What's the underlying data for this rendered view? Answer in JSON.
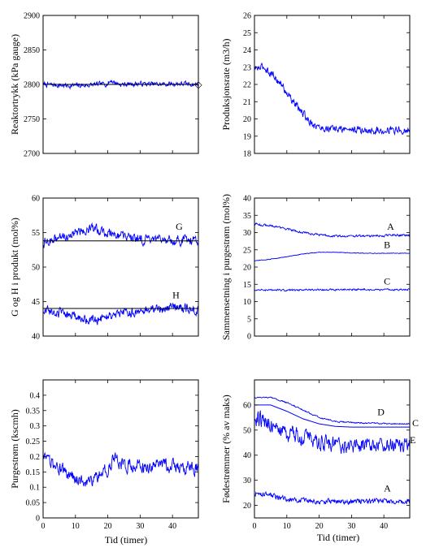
{
  "chart_data": [
    {
      "type": "line",
      "xlabel": "",
      "ylabel": "Reaktortrykk (kPa gauge)",
      "xlim": [
        0,
        48
      ],
      "ylim": [
        2700,
        2900
      ],
      "xticks": [
        0,
        10,
        20,
        30,
        40
      ],
      "xtick_labels_visible": false,
      "yticks": [
        2700,
        2750,
        2800,
        2850,
        2900
      ],
      "grid": false,
      "series": [
        {
          "style": "noisy",
          "color": "#0000ff",
          "x": [
            0,
            8,
            14,
            20,
            21,
            22,
            24,
            30,
            36,
            42,
            48
          ],
          "y": [
            2800,
            2798,
            2799,
            2801,
            2806,
            2803,
            2800,
            2801,
            2800,
            2801,
            2800
          ],
          "noise": 4
        },
        {
          "style": "line",
          "color": "#000000",
          "x": [
            0,
            48
          ],
          "y": [
            2800,
            2800
          ]
        }
      ],
      "annotations": [
        {
          "text": "◇",
          "x": 48,
          "y": 2800
        }
      ]
    },
    {
      "type": "line",
      "xlabel": "",
      "ylabel": "Produksjonsrate (m3/h)",
      "xlim": [
        0,
        48
      ],
      "ylim": [
        18,
        26
      ],
      "xticks": [
        0,
        10,
        20,
        30,
        40
      ],
      "xtick_labels_visible": false,
      "yticks": [
        18,
        19,
        20,
        21,
        22,
        23,
        24,
        25,
        26
      ],
      "grid": false,
      "series": [
        {
          "style": "noisy",
          "color": "#0000ff",
          "x": [
            0,
            3,
            6,
            9,
            12,
            15,
            18,
            20,
            24,
            30,
            36,
            42,
            48
          ],
          "y": [
            22.9,
            23.0,
            22.5,
            21.8,
            21.0,
            20.3,
            19.7,
            19.5,
            19.4,
            19.4,
            19.3,
            19.4,
            19.3
          ],
          "noise": 0.25
        }
      ],
      "annotations": []
    },
    {
      "type": "line",
      "xlabel": "",
      "ylabel": "G og H i produkt (mol%)",
      "xlim": [
        0,
        48
      ],
      "ylim": [
        40,
        60
      ],
      "xticks": [
        0,
        10,
        20,
        30,
        40
      ],
      "xtick_labels_visible": false,
      "yticks": [
        40,
        45,
        50,
        55,
        60
      ],
      "grid": false,
      "series": [
        {
          "name": "G",
          "style": "noisy",
          "color": "#0000ff",
          "x": [
            0,
            5,
            10,
            15,
            20,
            25,
            30,
            35,
            40,
            48
          ],
          "y": [
            53.5,
            54.2,
            55.0,
            55.6,
            55.0,
            54.4,
            54.0,
            53.8,
            54.0,
            53.8
          ],
          "noise": 0.8
        },
        {
          "style": "line",
          "color": "#000000",
          "x": [
            0,
            48
          ],
          "y": [
            53.8,
            53.8
          ]
        },
        {
          "name": "H",
          "style": "noisy",
          "color": "#0000ff",
          "x": [
            0,
            5,
            10,
            15,
            20,
            25,
            30,
            35,
            40,
            48
          ],
          "y": [
            43.8,
            43.5,
            42.8,
            42.3,
            42.8,
            43.2,
            43.6,
            43.9,
            44.2,
            43.8
          ],
          "noise": 0.8
        },
        {
          "style": "line",
          "color": "#000000",
          "x": [
            0,
            48
          ],
          "y": [
            44.0,
            44.0
          ]
        }
      ],
      "annotations": [
        {
          "text": "G",
          "x": 41,
          "y": 55.4
        },
        {
          "text": "H",
          "x": 40,
          "y": 45.5
        }
      ]
    },
    {
      "type": "line",
      "xlabel": "",
      "ylabel": "Sammensetning i purgestrøm (mol%)",
      "xlim": [
        0,
        48
      ],
      "ylim": [
        0,
        40
      ],
      "xticks": [
        0,
        10,
        20,
        30,
        40
      ],
      "xtick_labels_visible": false,
      "yticks": [
        0,
        5,
        10,
        15,
        20,
        25,
        30,
        35,
        40
      ],
      "grid": false,
      "series": [
        {
          "name": "A",
          "style": "noisy",
          "color": "#0000ff",
          "x": [
            0,
            5,
            10,
            15,
            20,
            25,
            30,
            36,
            42,
            48
          ],
          "y": [
            32.5,
            32.0,
            31.0,
            30.0,
            29.3,
            29.0,
            29.0,
            29.0,
            29.2,
            29.2
          ],
          "noise": 0.35
        },
        {
          "name": "B",
          "style": "noisy",
          "color": "#0000ff",
          "x": [
            0,
            5,
            10,
            15,
            20,
            25,
            30,
            36,
            42,
            48
          ],
          "y": [
            21.8,
            22.3,
            23.0,
            23.8,
            24.3,
            24.3,
            24.1,
            24.0,
            24.0,
            24.0
          ],
          "noise": 0.1
        },
        {
          "name": "C",
          "style": "noisy",
          "color": "#0000ff",
          "x": [
            0,
            10,
            20,
            30,
            40,
            48
          ],
          "y": [
            13.5,
            13.3,
            13.4,
            13.5,
            13.4,
            13.5
          ],
          "noise": 0.3
        }
      ],
      "annotations": [
        {
          "text": "A",
          "x": 41,
          "y": 30.8
        },
        {
          "text": "B",
          "x": 40,
          "y": 25.5
        },
        {
          "text": "C",
          "x": 40,
          "y": 15.0
        }
      ]
    },
    {
      "type": "line",
      "xlabel": "",
      "ylabel": "Purgestrøm (kscmh)",
      "xlim": [
        0,
        48
      ],
      "ylim": [
        0,
        0.45
      ],
      "xticks": [
        0,
        10,
        20,
        30,
        40
      ],
      "xtick_labels_visible": true,
      "yticks": [
        0,
        0.05,
        0.1,
        0.15,
        0.2,
        0.25,
        0.3,
        0.35,
        0.4
      ],
      "grid": false,
      "series": [
        {
          "style": "noisy",
          "color": "#0000ff",
          "x": [
            0,
            5,
            10,
            15,
            20,
            22,
            25,
            30,
            35,
            40,
            48
          ],
          "y": [
            0.19,
            0.16,
            0.13,
            0.12,
            0.16,
            0.19,
            0.17,
            0.17,
            0.17,
            0.17,
            0.16
          ],
          "noise": 0.025
        }
      ],
      "annotations": []
    },
    {
      "type": "line",
      "xlabel": "",
      "ylabel": "Fødestrømmer (% av maks)",
      "xlim": [
        0,
        48
      ],
      "ylim": [
        15,
        70
      ],
      "xticks": [
        0,
        10,
        20,
        30,
        40
      ],
      "xtick_labels_visible": true,
      "yticks": [
        20,
        30,
        40,
        50,
        60
      ],
      "grid": false,
      "series": [
        {
          "name": "D",
          "style": "noisy",
          "color": "#0000ff",
          "x": [
            0,
            5,
            10,
            15,
            20,
            25,
            30,
            36,
            42,
            48
          ],
          "y": [
            63,
            63,
            61,
            58,
            55,
            53.5,
            53,
            52.8,
            52.5,
            52.5
          ],
          "noise": 0.3
        },
        {
          "name": "C",
          "style": "line",
          "color": "#0000ff",
          "x": [
            0,
            5,
            10,
            15,
            20,
            25,
            30,
            48
          ],
          "y": [
            60,
            60,
            57.5,
            54.5,
            52.5,
            51.5,
            51.2,
            51.2
          ]
        },
        {
          "name": "E",
          "style": "noisy",
          "color": "#0000ff",
          "x": [
            0,
            5,
            10,
            15,
            20,
            25,
            30,
            36,
            42,
            48
          ],
          "y": [
            55,
            52,
            49,
            47,
            45,
            44,
            44,
            44,
            44.5,
            44.5
          ],
          "noise": 3.5
        },
        {
          "name": "A",
          "style": "noisy",
          "color": "#0000ff",
          "x": [
            0,
            10,
            20,
            30,
            40,
            48
          ],
          "y": [
            25,
            22.5,
            21.5,
            21.5,
            21.5,
            21.5
          ],
          "noise": 1.2
        }
      ],
      "annotations": [
        {
          "text": "D",
          "x": 38,
          "y": 56
        },
        {
          "text": "A",
          "x": 40,
          "y": 25.5
        }
      ]
    }
  ],
  "figure": {
    "xlabel": "Tid (timer)",
    "outside_labels": {
      "c": "C",
      "e": "E"
    }
  }
}
